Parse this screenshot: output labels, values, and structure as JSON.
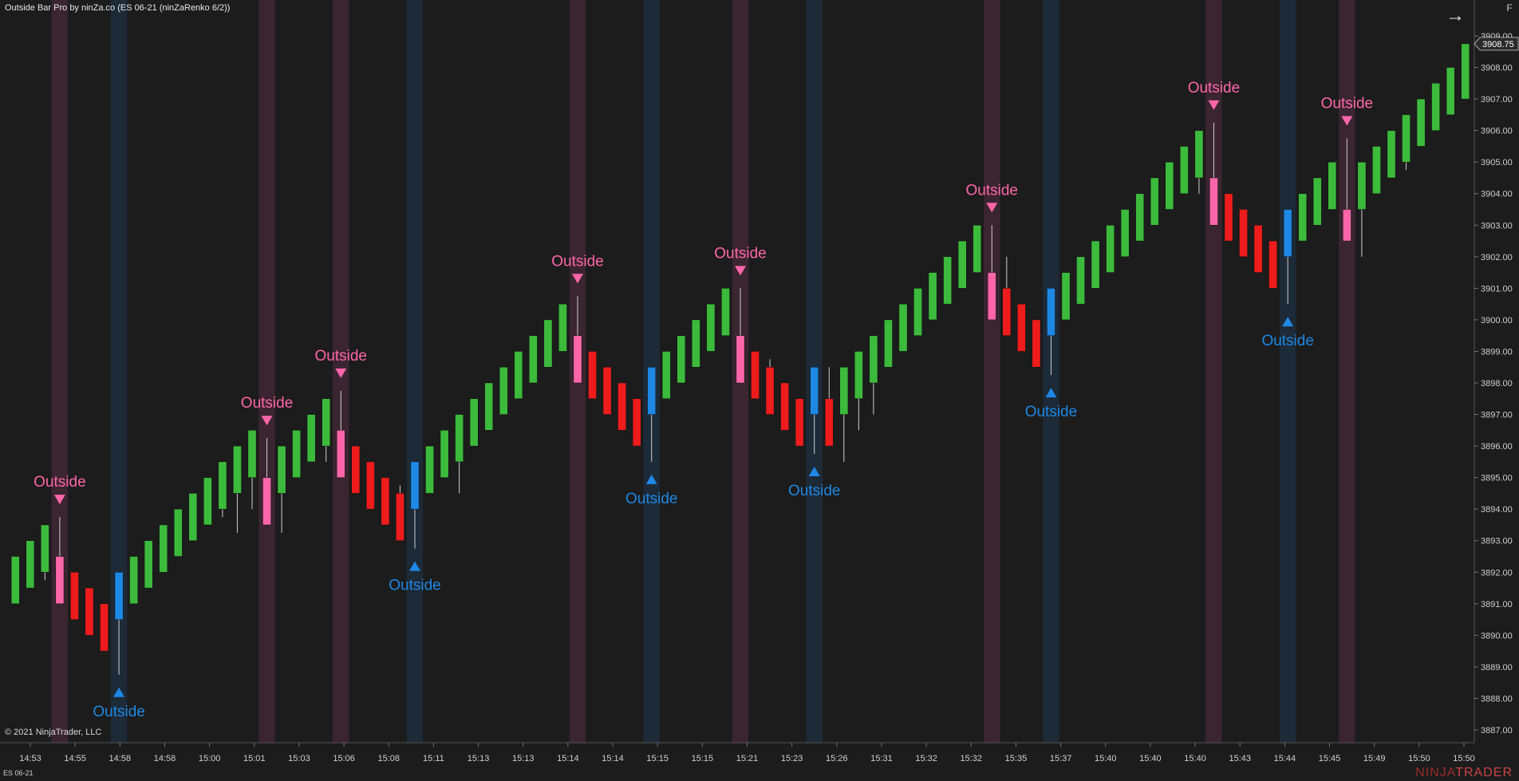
{
  "header": {
    "title": "Outside Bar Pro by ninZa.co (ES 06-21 (ninZaRenko 6/2))",
    "copyright": "© 2021 NinjaTrader, LLC",
    "instrument": "ES 06-21",
    "logo_prefix": "NINJA",
    "logo_suffix": "TRADER",
    "f_label": "F",
    "arrow_icon": "arrow-right-icon"
  },
  "colors": {
    "background": "#1c1c1c",
    "bull": "#3cba3c",
    "bear": "#ee1c1c",
    "outside_down": "#ff66aa",
    "outside_up": "#1e88e5",
    "band_down": "#3a2530",
    "band_up": "#1d2a38"
  },
  "chart_data": {
    "type": "candlestick",
    "title": "",
    "ylim": [
      3886.5,
      3909.5
    ],
    "price_ticks": [
      "3887.00",
      "3888.00",
      "3889.00",
      "3890.00",
      "3891.00",
      "3892.00",
      "3893.00",
      "3894.00",
      "3895.00",
      "3896.00",
      "3897.00",
      "3898.00",
      "3899.00",
      "3900.00",
      "3901.00",
      "3902.00",
      "3903.00",
      "3904.00",
      "3905.00",
      "3906.00",
      "3907.00",
      "3908.00",
      "3909.00"
    ],
    "last_price": "3908.75",
    "time_labels": [
      "14:53",
      "14:55",
      "14:58",
      "14:58",
      "15:00",
      "15:01",
      "15:03",
      "15:06",
      "15:08",
      "15:11",
      "15:13",
      "15:13",
      "15:14",
      "15:14",
      "15:15",
      "15:15",
      "15:21",
      "15:23",
      "15:26",
      "15:31",
      "15:32",
      "15:32",
      "15:35",
      "15:37",
      "15:40",
      "15:40",
      "15:40",
      "15:43",
      "15:44",
      "15:45",
      "15:49",
      "15:50",
      "15:50"
    ],
    "signal_label": "Outside",
    "candles": [
      {
        "o": 3891.0,
        "c": 3892.5,
        "h": 3892.5,
        "l": 3891.0,
        "t": "bull"
      },
      {
        "o": 3891.5,
        "c": 3893.0,
        "h": 3893.0,
        "l": 3891.5,
        "t": "bull"
      },
      {
        "o": 3892.0,
        "c": 3893.5,
        "h": 3893.5,
        "l": 3891.75,
        "t": "bull"
      },
      {
        "o": 3892.5,
        "c": 3891.0,
        "h": 3893.75,
        "l": 3891.0,
        "t": "down"
      },
      {
        "o": 3892.0,
        "c": 3890.5,
        "h": 3892.0,
        "l": 3890.5,
        "t": "bear"
      },
      {
        "o": 3891.5,
        "c": 3890.0,
        "h": 3891.5,
        "l": 3890.0,
        "t": "bear"
      },
      {
        "o": 3891.0,
        "c": 3889.5,
        "h": 3891.0,
        "l": 3889.5,
        "t": "bear"
      },
      {
        "o": 3890.5,
        "c": 3892.0,
        "h": 3892.0,
        "l": 3888.75,
        "t": "up"
      },
      {
        "o": 3891.0,
        "c": 3892.5,
        "h": 3892.5,
        "l": 3891.0,
        "t": "bull"
      },
      {
        "o": 3891.5,
        "c": 3893.0,
        "h": 3893.0,
        "l": 3891.5,
        "t": "bull"
      },
      {
        "o": 3892.0,
        "c": 3893.5,
        "h": 3893.5,
        "l": 3892.0,
        "t": "bull"
      },
      {
        "o": 3892.5,
        "c": 3894.0,
        "h": 3894.0,
        "l": 3892.5,
        "t": "bull"
      },
      {
        "o": 3893.0,
        "c": 3894.5,
        "h": 3894.5,
        "l": 3893.0,
        "t": "bull"
      },
      {
        "o": 3893.5,
        "c": 3895.0,
        "h": 3895.0,
        "l": 3893.5,
        "t": "bull"
      },
      {
        "o": 3894.0,
        "c": 3895.5,
        "h": 3895.5,
        "l": 3893.75,
        "t": "bull"
      },
      {
        "o": 3894.5,
        "c": 3896.0,
        "h": 3896.0,
        "l": 3893.25,
        "t": "bull"
      },
      {
        "o": 3895.0,
        "c": 3896.5,
        "h": 3896.5,
        "l": 3894.0,
        "t": "bull"
      },
      {
        "o": 3895.0,
        "c": 3893.5,
        "h": 3896.25,
        "l": 3893.5,
        "t": "down"
      },
      {
        "o": 3894.5,
        "c": 3896.0,
        "h": 3896.0,
        "l": 3893.25,
        "t": "bull"
      },
      {
        "o": 3895.0,
        "c": 3896.5,
        "h": 3896.5,
        "l": 3895.0,
        "t": "bull"
      },
      {
        "o": 3895.5,
        "c": 3897.0,
        "h": 3897.0,
        "l": 3895.5,
        "t": "bull"
      },
      {
        "o": 3896.0,
        "c": 3897.5,
        "h": 3897.5,
        "l": 3895.5,
        "t": "bull"
      },
      {
        "o": 3896.5,
        "c": 3895.0,
        "h": 3897.75,
        "l": 3895.0,
        "t": "down"
      },
      {
        "o": 3896.0,
        "c": 3894.5,
        "h": 3896.0,
        "l": 3894.5,
        "t": "bear"
      },
      {
        "o": 3895.5,
        "c": 3894.0,
        "h": 3895.5,
        "l": 3894.0,
        "t": "bear"
      },
      {
        "o": 3895.0,
        "c": 3893.5,
        "h": 3895.0,
        "l": 3893.5,
        "t": "bear"
      },
      {
        "o": 3894.5,
        "c": 3893.0,
        "h": 3894.75,
        "l": 3893.0,
        "t": "bear"
      },
      {
        "o": 3894.0,
        "c": 3895.5,
        "h": 3895.5,
        "l": 3892.75,
        "t": "up"
      },
      {
        "o": 3894.5,
        "c": 3896.0,
        "h": 3896.0,
        "l": 3894.5,
        "t": "bull"
      },
      {
        "o": 3895.0,
        "c": 3896.5,
        "h": 3896.5,
        "l": 3895.0,
        "t": "bull"
      },
      {
        "o": 3895.5,
        "c": 3897.0,
        "h": 3897.0,
        "l": 3894.5,
        "t": "bull"
      },
      {
        "o": 3896.0,
        "c": 3897.5,
        "h": 3897.5,
        "l": 3896.0,
        "t": "bull"
      },
      {
        "o": 3896.5,
        "c": 3898.0,
        "h": 3898.0,
        "l": 3896.5,
        "t": "bull"
      },
      {
        "o": 3897.0,
        "c": 3898.5,
        "h": 3898.5,
        "l": 3897.0,
        "t": "bull"
      },
      {
        "o": 3897.5,
        "c": 3899.0,
        "h": 3899.0,
        "l": 3897.5,
        "t": "bull"
      },
      {
        "o": 3898.0,
        "c": 3899.5,
        "h": 3899.5,
        "l": 3898.0,
        "t": "bull"
      },
      {
        "o": 3898.5,
        "c": 3900.0,
        "h": 3900.0,
        "l": 3898.5,
        "t": "bull"
      },
      {
        "o": 3899.0,
        "c": 3900.5,
        "h": 3900.5,
        "l": 3899.0,
        "t": "bull"
      },
      {
        "o": 3899.5,
        "c": 3898.0,
        "h": 3900.75,
        "l": 3898.0,
        "t": "down"
      },
      {
        "o": 3899.0,
        "c": 3897.5,
        "h": 3899.0,
        "l": 3897.5,
        "t": "bear"
      },
      {
        "o": 3898.5,
        "c": 3897.0,
        "h": 3898.5,
        "l": 3897.0,
        "t": "bear"
      },
      {
        "o": 3898.0,
        "c": 3896.5,
        "h": 3898.0,
        "l": 3896.5,
        "t": "bear"
      },
      {
        "o": 3897.5,
        "c": 3896.0,
        "h": 3897.5,
        "l": 3896.0,
        "t": "bear"
      },
      {
        "o": 3897.0,
        "c": 3898.5,
        "h": 3898.5,
        "l": 3895.5,
        "t": "up"
      },
      {
        "o": 3897.5,
        "c": 3899.0,
        "h": 3899.0,
        "l": 3897.5,
        "t": "bull"
      },
      {
        "o": 3898.0,
        "c": 3899.5,
        "h": 3899.5,
        "l": 3898.0,
        "t": "bull"
      },
      {
        "o": 3898.5,
        "c": 3900.0,
        "h": 3900.0,
        "l": 3898.5,
        "t": "bull"
      },
      {
        "o": 3899.0,
        "c": 3900.5,
        "h": 3900.5,
        "l": 3899.0,
        "t": "bull"
      },
      {
        "o": 3899.5,
        "c": 3901.0,
        "h": 3901.0,
        "l": 3899.5,
        "t": "bull"
      },
      {
        "o": 3899.5,
        "c": 3898.0,
        "h": 3901.0,
        "l": 3898.0,
        "t": "down"
      },
      {
        "o": 3899.0,
        "c": 3897.5,
        "h": 3899.0,
        "l": 3897.5,
        "t": "bear"
      },
      {
        "o": 3898.5,
        "c": 3897.0,
        "h": 3898.75,
        "l": 3897.0,
        "t": "bear"
      },
      {
        "o": 3898.0,
        "c": 3896.5,
        "h": 3898.0,
        "l": 3896.5,
        "t": "bear"
      },
      {
        "o": 3897.5,
        "c": 3896.0,
        "h": 3897.5,
        "l": 3896.0,
        "t": "bear"
      },
      {
        "o": 3897.0,
        "c": 3898.5,
        "h": 3898.5,
        "l": 3895.75,
        "t": "up"
      },
      {
        "o": 3897.5,
        "c": 3896.0,
        "h": 3898.5,
        "l": 3896.0,
        "t": "bear"
      },
      {
        "o": 3897.0,
        "c": 3898.5,
        "h": 3898.5,
        "l": 3895.5,
        "t": "bull"
      },
      {
        "o": 3897.5,
        "c": 3899.0,
        "h": 3899.0,
        "l": 3896.5,
        "t": "bull"
      },
      {
        "o": 3898.0,
        "c": 3899.5,
        "h": 3899.5,
        "l": 3897.0,
        "t": "bull"
      },
      {
        "o": 3898.5,
        "c": 3900.0,
        "h": 3900.0,
        "l": 3898.5,
        "t": "bull"
      },
      {
        "o": 3899.0,
        "c": 3900.5,
        "h": 3900.5,
        "l": 3899.0,
        "t": "bull"
      },
      {
        "o": 3899.5,
        "c": 3901.0,
        "h": 3901.0,
        "l": 3899.5,
        "t": "bull"
      },
      {
        "o": 3900.0,
        "c": 3901.5,
        "h": 3901.5,
        "l": 3900.0,
        "t": "bull"
      },
      {
        "o": 3900.5,
        "c": 3902.0,
        "h": 3902.0,
        "l": 3900.5,
        "t": "bull"
      },
      {
        "o": 3901.0,
        "c": 3902.5,
        "h": 3902.5,
        "l": 3901.0,
        "t": "bull"
      },
      {
        "o": 3901.5,
        "c": 3903.0,
        "h": 3903.0,
        "l": 3901.5,
        "t": "bull"
      },
      {
        "o": 3901.5,
        "c": 3900.0,
        "h": 3903.0,
        "l": 3900.0,
        "t": "down"
      },
      {
        "o": 3901.0,
        "c": 3899.5,
        "h": 3902.0,
        "l": 3899.5,
        "t": "bear"
      },
      {
        "o": 3900.5,
        "c": 3899.0,
        "h": 3900.5,
        "l": 3899.0,
        "t": "bear"
      },
      {
        "o": 3900.0,
        "c": 3898.5,
        "h": 3900.0,
        "l": 3898.5,
        "t": "bear"
      },
      {
        "o": 3899.5,
        "c": 3901.0,
        "h": 3901.0,
        "l": 3898.25,
        "t": "up"
      },
      {
        "o": 3900.0,
        "c": 3901.5,
        "h": 3901.5,
        "l": 3900.0,
        "t": "bull"
      },
      {
        "o": 3900.5,
        "c": 3902.0,
        "h": 3902.0,
        "l": 3900.5,
        "t": "bull"
      },
      {
        "o": 3901.0,
        "c": 3902.5,
        "h": 3902.5,
        "l": 3901.0,
        "t": "bull"
      },
      {
        "o": 3901.5,
        "c": 3903.0,
        "h": 3903.0,
        "l": 3901.5,
        "t": "bull"
      },
      {
        "o": 3902.0,
        "c": 3903.5,
        "h": 3903.5,
        "l": 3902.0,
        "t": "bull"
      },
      {
        "o": 3902.5,
        "c": 3904.0,
        "h": 3904.0,
        "l": 3902.5,
        "t": "bull"
      },
      {
        "o": 3903.0,
        "c": 3904.5,
        "h": 3904.5,
        "l": 3903.0,
        "t": "bull"
      },
      {
        "o": 3903.5,
        "c": 3905.0,
        "h": 3905.0,
        "l": 3903.5,
        "t": "bull"
      },
      {
        "o": 3904.0,
        "c": 3905.5,
        "h": 3905.5,
        "l": 3904.0,
        "t": "bull"
      },
      {
        "o": 3904.5,
        "c": 3906.0,
        "h": 3906.0,
        "l": 3904.0,
        "t": "bull"
      },
      {
        "o": 3904.5,
        "c": 3903.0,
        "h": 3906.25,
        "l": 3903.0,
        "t": "down"
      },
      {
        "o": 3904.0,
        "c": 3902.5,
        "h": 3904.0,
        "l": 3902.5,
        "t": "bear"
      },
      {
        "o": 3903.5,
        "c": 3902.0,
        "h": 3903.5,
        "l": 3902.0,
        "t": "bear"
      },
      {
        "o": 3903.0,
        "c": 3901.5,
        "h": 3903.0,
        "l": 3901.5,
        "t": "bear"
      },
      {
        "o": 3902.5,
        "c": 3901.0,
        "h": 3902.5,
        "l": 3901.0,
        "t": "bear"
      },
      {
        "o": 3902.0,
        "c": 3903.5,
        "h": 3903.5,
        "l": 3900.5,
        "t": "up"
      },
      {
        "o": 3902.5,
        "c": 3904.0,
        "h": 3904.0,
        "l": 3902.5,
        "t": "bull"
      },
      {
        "o": 3903.0,
        "c": 3904.5,
        "h": 3904.5,
        "l": 3903.0,
        "t": "bull"
      },
      {
        "o": 3903.5,
        "c": 3905.0,
        "h": 3905.0,
        "l": 3903.5,
        "t": "bull"
      },
      {
        "o": 3903.5,
        "c": 3902.5,
        "h": 3905.75,
        "l": 3902.5,
        "t": "down"
      },
      {
        "o": 3903.5,
        "c": 3905.0,
        "h": 3905.0,
        "l": 3902.0,
        "t": "bull"
      },
      {
        "o": 3904.0,
        "c": 3905.5,
        "h": 3905.5,
        "l": 3904.0,
        "t": "bull"
      },
      {
        "o": 3904.5,
        "c": 3906.0,
        "h": 3906.0,
        "l": 3904.5,
        "t": "bull"
      },
      {
        "o": 3905.0,
        "c": 3906.5,
        "h": 3906.5,
        "l": 3904.75,
        "t": "bull"
      },
      {
        "o": 3905.5,
        "c": 3907.0,
        "h": 3907.0,
        "l": 3905.5,
        "t": "bull"
      },
      {
        "o": 3906.0,
        "c": 3907.5,
        "h": 3907.5,
        "l": 3906.0,
        "t": "bull"
      },
      {
        "o": 3906.5,
        "c": 3908.0,
        "h": 3908.0,
        "l": 3906.5,
        "t": "bull"
      },
      {
        "o": 3907.0,
        "c": 3908.75,
        "h": 3908.75,
        "l": 3907.0,
        "t": "bull"
      }
    ]
  }
}
